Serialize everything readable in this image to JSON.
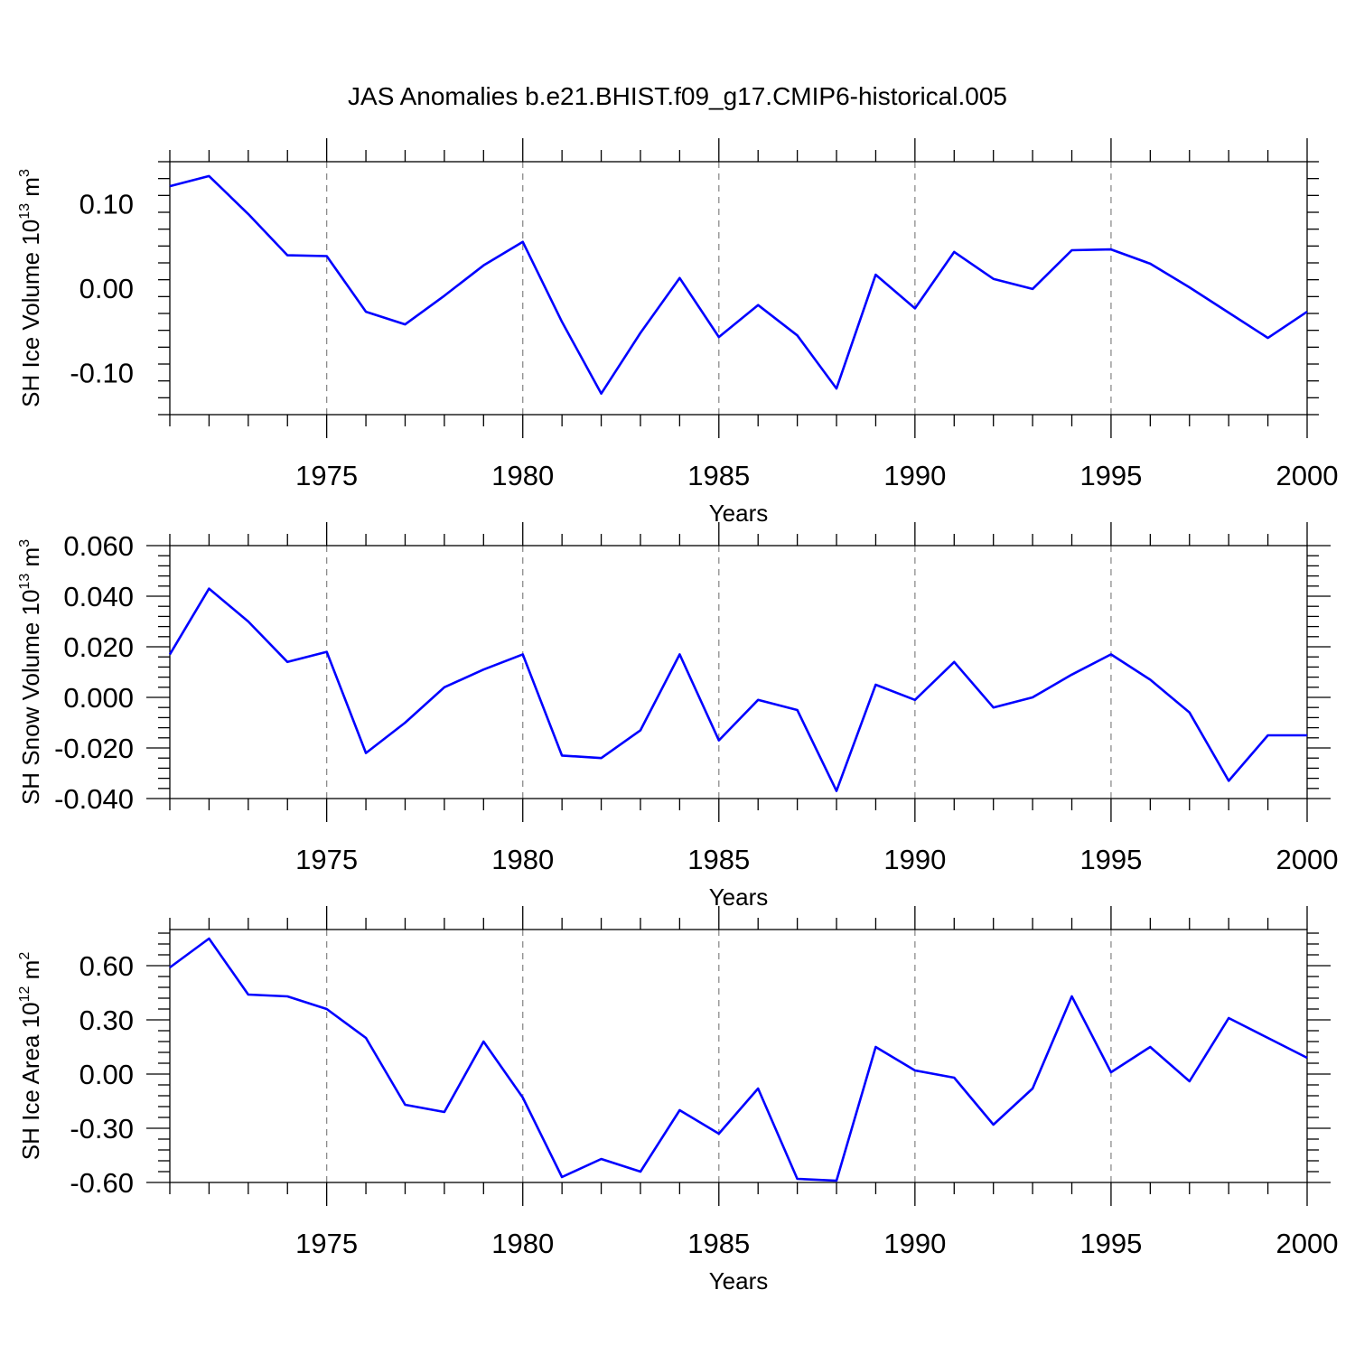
{
  "title": "JAS Anomalies b.e21.BHIST.f09_g17.CMIP6-historical.005",
  "colors": {
    "line": "#0000ff",
    "grid": "#8c8c8c",
    "axis": "#000000"
  },
  "chart_data": [
    {
      "type": "line",
      "xlabel": "Years",
      "ylabel": {
        "base": "SH Ice Volume 10",
        "exp": "13",
        "unit": " m",
        "unit_exp": "3"
      },
      "xlim": [
        1971,
        2000
      ],
      "ylim": [
        -0.15,
        0.15
      ],
      "xticks": [
        1975,
        1980,
        1985,
        1990,
        1995,
        2000
      ],
      "xtick_labels": [
        "1975",
        "1980",
        "1985",
        "1990",
        "1995",
        "2000"
      ],
      "yticks": [
        -0.1,
        0.0,
        0.1
      ],
      "ytick_labels": [
        "-0.10",
        "0.00",
        "0.10"
      ],
      "grid": "vertical dashed at major x ticks",
      "x": [
        1971,
        1972,
        1973,
        1974,
        1975,
        1976,
        1977,
        1978,
        1979,
        1980,
        1981,
        1982,
        1983,
        1984,
        1985,
        1986,
        1987,
        1988,
        1989,
        1990,
        1991,
        1992,
        1993,
        1994,
        1995,
        1996,
        1997,
        1998,
        1999,
        2000
      ],
      "values": [
        0.121,
        0.133,
        0.088,
        0.039,
        0.038,
        -0.028,
        -0.043,
        -0.009,
        0.027,
        0.055,
        -0.04,
        -0.125,
        -0.053,
        0.012,
        -0.058,
        -0.02,
        -0.056,
        -0.119,
        0.016,
        -0.024,
        0.043,
        0.011,
        -0.001,
        0.045,
        0.046,
        0.029,
        0.001,
        -0.029,
        -0.059,
        -0.028
      ]
    },
    {
      "type": "line",
      "xlabel": "Years",
      "ylabel": {
        "base": "SH Snow Volume 10",
        "exp": "13",
        "unit": " m",
        "unit_exp": "3"
      },
      "xlim": [
        1971,
        2000
      ],
      "ylim": [
        -0.04,
        0.06
      ],
      "xticks": [
        1975,
        1980,
        1985,
        1990,
        1995,
        2000
      ],
      "xtick_labels": [
        "1975",
        "1980",
        "1985",
        "1990",
        "1995",
        "2000"
      ],
      "yticks": [
        -0.04,
        -0.02,
        0.0,
        0.02,
        0.04,
        0.06
      ],
      "ytick_labels": [
        "-0.040",
        "-0.020",
        "0.000",
        "0.020",
        "0.040",
        "0.060"
      ],
      "grid": "vertical dashed at major x ticks",
      "x": [
        1971,
        1972,
        1973,
        1974,
        1975,
        1976,
        1977,
        1978,
        1979,
        1980,
        1981,
        1982,
        1983,
        1984,
        1985,
        1986,
        1987,
        1988,
        1989,
        1990,
        1991,
        1992,
        1993,
        1994,
        1995,
        1996,
        1997,
        1998,
        1999,
        2000
      ],
      "values": [
        0.017,
        0.043,
        0.03,
        0.014,
        0.018,
        -0.022,
        -0.01,
        0.004,
        0.011,
        0.017,
        -0.023,
        -0.024,
        -0.013,
        0.017,
        -0.017,
        -0.001,
        -0.005,
        -0.037,
        0.005,
        -0.001,
        0.014,
        -0.004,
        -0.0,
        0.009,
        0.017,
        0.007,
        -0.006,
        -0.033,
        -0.015,
        -0.015
      ]
    },
    {
      "type": "line",
      "xlabel": "Years",
      "ylabel": {
        "base": "SH Ice Area 10",
        "exp": "12",
        "unit": " m",
        "unit_exp": "2"
      },
      "xlim": [
        1971,
        2000
      ],
      "ylim": [
        -0.6,
        0.8
      ],
      "xticks": [
        1975,
        1980,
        1985,
        1990,
        1995,
        2000
      ],
      "xtick_labels": [
        "1975",
        "1980",
        "1985",
        "1990",
        "1995",
        "2000"
      ],
      "yticks": [
        -0.6,
        -0.3,
        0.0,
        0.3,
        0.6
      ],
      "ytick_labels": [
        "-0.60",
        "-0.30",
        "0.00",
        "0.30",
        "0.60"
      ],
      "grid": "vertical dashed at major x ticks",
      "x": [
        1971,
        1972,
        1973,
        1974,
        1975,
        1976,
        1977,
        1978,
        1979,
        1980,
        1981,
        1982,
        1983,
        1984,
        1985,
        1986,
        1987,
        1988,
        1989,
        1990,
        1991,
        1992,
        1993,
        1994,
        1995,
        1996,
        1997,
        1998,
        1999,
        2000
      ],
      "values": [
        0.59,
        0.75,
        0.44,
        0.43,
        0.36,
        0.2,
        -0.17,
        -0.21,
        0.18,
        -0.13,
        -0.57,
        -0.47,
        -0.54,
        -0.2,
        -0.33,
        -0.08,
        -0.58,
        -0.59,
        0.15,
        0.02,
        -0.02,
        -0.28,
        -0.08,
        0.43,
        0.01,
        0.15,
        -0.04,
        0.31,
        0.2,
        0.09
      ]
    }
  ]
}
